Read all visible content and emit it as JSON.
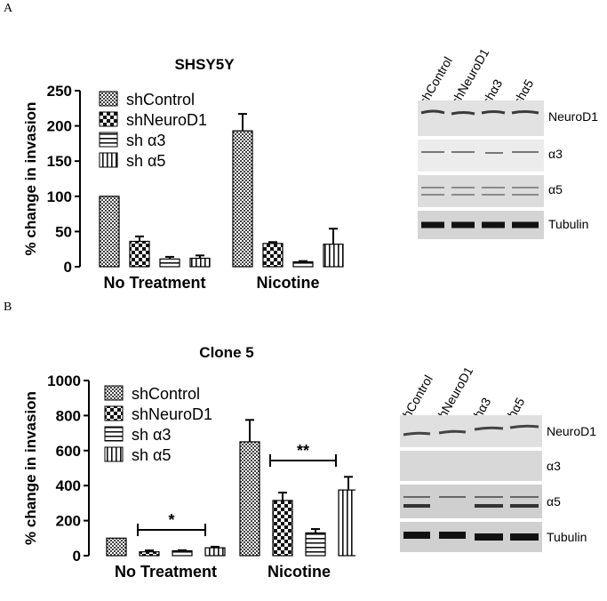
{
  "panels": [
    {
      "letter": "A",
      "blot": {
        "lanes": [
          "shControl",
          "shNeuroD1",
          "shα3",
          "shα5"
        ],
        "bands": [
          "NeuroD1",
          "α3",
          "α5",
          "Tubulin"
        ]
      }
    },
    {
      "letter": "B",
      "blot": {
        "lanes": [
          "shControl",
          "shNeuroD1",
          "shα3",
          "shα5"
        ],
        "bands": [
          "NeuroD1",
          "α3",
          "α5",
          "Tubulin"
        ]
      }
    }
  ],
  "chart_data": [
    {
      "type": "bar",
      "title": "SHSY5Y",
      "ylabel": "% change in invasion",
      "xlabel": "",
      "ylim": [
        0,
        250
      ],
      "yticks": [
        0,
        50,
        100,
        150,
        200,
        250
      ],
      "categories": [
        "No Treatment",
        "Nicotine"
      ],
      "series": [
        {
          "name": "shControl",
          "values": [
            100,
            193
          ],
          "errors": [
            0,
            24
          ],
          "pattern": "dense-check"
        },
        {
          "name": "shNeuroD1",
          "values": [
            36,
            33
          ],
          "errors": [
            7,
            2
          ],
          "pattern": "check"
        },
        {
          "name": "sh α3",
          "values": [
            11,
            7
          ],
          "errors": [
            3,
            1
          ],
          "pattern": "hstripe"
        },
        {
          "name": "sh α5",
          "values": [
            12,
            32
          ],
          "errors": [
            4,
            22
          ],
          "pattern": "vstripe"
        }
      ],
      "annotations": [],
      "legend": "top-left"
    },
    {
      "type": "bar",
      "title": "Clone 5",
      "ylabel": "% change in invasion",
      "xlabel": "",
      "ylim": [
        0,
        1000
      ],
      "yticks": [
        0,
        200,
        400,
        600,
        800,
        1000
      ],
      "categories": [
        "No Treatment",
        "Nicotine"
      ],
      "series": [
        {
          "name": "shControl",
          "values": [
            100,
            650
          ],
          "errors": [
            0,
            125
          ],
          "pattern": "dense-check"
        },
        {
          "name": "shNeuroD1",
          "values": [
            22,
            315
          ],
          "errors": [
            8,
            45
          ],
          "pattern": "check"
        },
        {
          "name": "sh α3",
          "values": [
            28,
            130
          ],
          "errors": [
            3,
            22
          ],
          "pattern": "hstripe"
        },
        {
          "name": "sh α5",
          "values": [
            45,
            375
          ],
          "errors": [
            6,
            75
          ],
          "pattern": "vstripe"
        }
      ],
      "annotations": [
        "*",
        "**"
      ],
      "legend": "top-left"
    }
  ]
}
